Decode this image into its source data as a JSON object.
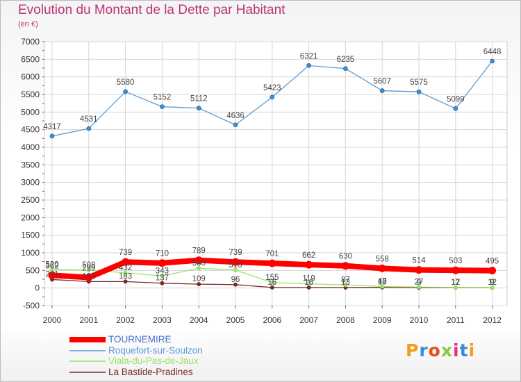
{
  "header": {
    "title": "Evolution du Montant de la Dette par Habitant",
    "subtitle": "(en €)"
  },
  "logo": {
    "text": "Proxiti",
    "colors": [
      "#f39c1b",
      "#3a8bd8",
      "#e84c1f",
      "#8dc63f",
      "#e8308a",
      "#3a8bd8",
      "#f39c1b"
    ]
  },
  "chart_data": {
    "type": "line",
    "title": "Evolution du Montant de la Dette par Habitant",
    "subtitle": "(en €)",
    "x": [
      "2000",
      "2001",
      "2002",
      "2003",
      "2004",
      "2005",
      "2006",
      "2007",
      "2008",
      "2009",
      "2010",
      "2011",
      "2012"
    ],
    "ylim": [
      -500,
      7000
    ],
    "yticks": [
      -500,
      0,
      500,
      1000,
      1500,
      2000,
      2500,
      3000,
      3500,
      4000,
      4500,
      5000,
      5500,
      6000,
      6500,
      7000
    ],
    "grid": true,
    "legend_position": "bottom-left",
    "series": [
      {
        "name": "TOURNEMIRE",
        "color": "#ff0000",
        "values": [
          362,
          299,
          739,
          710,
          789,
          739,
          701,
          662,
          630,
          558,
          514,
          503,
          495
        ],
        "labels": [
          "362",
          "299",
          "739",
          "710",
          "789",
          "739",
          "701",
          "662",
          "630",
          "558",
          "514",
          "503",
          "495"
        ]
      },
      {
        "name": "Roquefort-sur-Soulzon",
        "color": "#5b9bd5",
        "values": [
          4317,
          4531,
          5580,
          5152,
          5112,
          4636,
          5423,
          6321,
          6235,
          5607,
          5575,
          5099,
          6448
        ],
        "labels": [
          "4317",
          "4531",
          "5580",
          "5152",
          "5112",
          "4636",
          "5423",
          "6321",
          "6235",
          "5607",
          "5575",
          "5099",
          "6448"
        ]
      },
      {
        "name": "Viala-du-Pas-de-Jaux",
        "color": "#99e266",
        "values": [
          520,
          508,
          432,
          343,
          560,
          510,
          155,
          119,
          87,
          43,
          27,
          17,
          12
        ],
        "labels": [
          "520",
          "508",
          "432",
          "343",
          "560",
          "510",
          "155",
          "119",
          "87",
          "43",
          "27",
          "17",
          "12"
        ]
      },
      {
        "name": "La Bastide-Pradines",
        "color": "#7a2a2a",
        "values": [
          241,
          183,
          183,
          137,
          109,
          96,
          16,
          16,
          13,
          19,
          9,
          12,
          9
        ],
        "labels": [
          "241",
          "183",
          "183",
          "137",
          "109",
          "96",
          "16",
          "16",
          "13",
          "19",
          "9",
          "12",
          "9"
        ]
      }
    ]
  }
}
